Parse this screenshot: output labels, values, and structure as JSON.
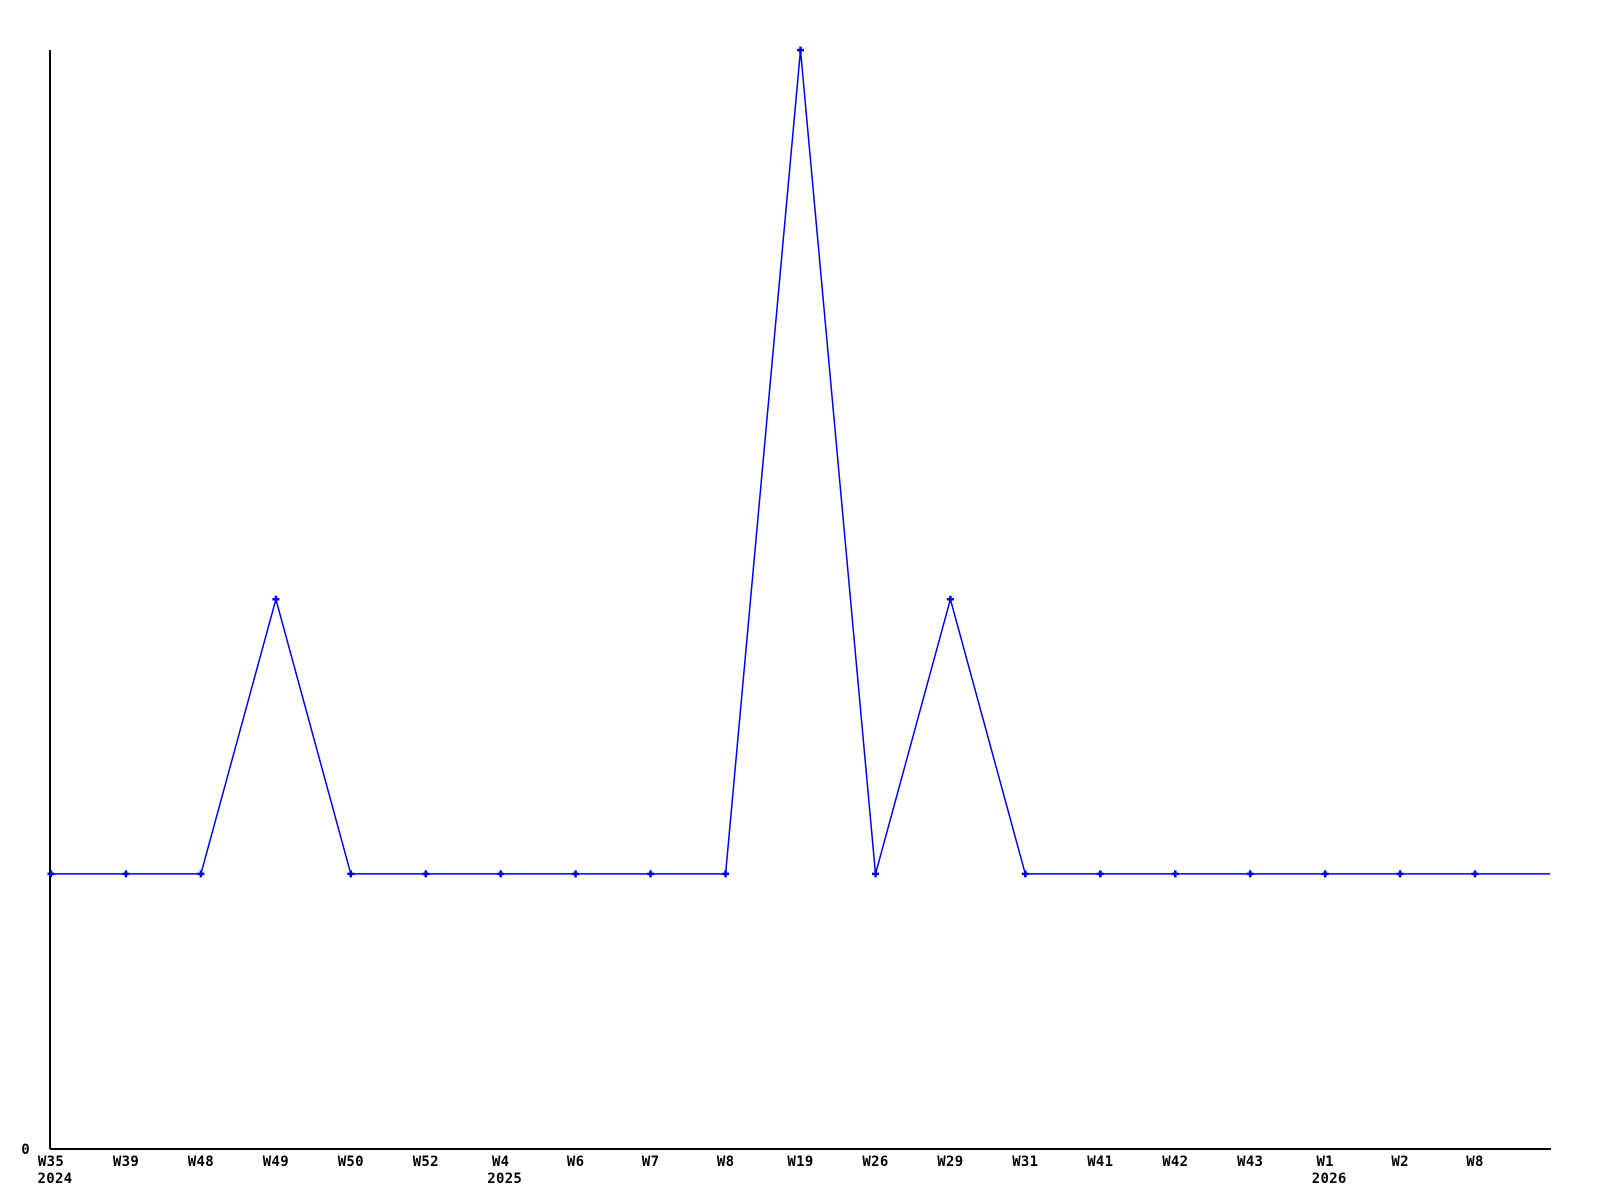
{
  "chart_data": {
    "type": "line",
    "title": "",
    "xlabel": "",
    "ylabel": "",
    "categories": [
      "W35",
      "W39",
      "W48",
      "W49",
      "W50",
      "W52",
      "W4",
      "W6",
      "W7",
      "W8",
      "W19",
      "W26",
      "W29",
      "W31",
      "W41",
      "W42",
      "W43",
      "W1",
      "W2",
      "W8"
    ],
    "values": [
      1,
      1,
      1,
      2,
      1,
      1,
      1,
      1,
      1,
      1,
      4,
      1,
      2,
      1,
      1,
      1,
      1,
      1,
      1,
      1
    ],
    "year_labels": [
      {
        "index": 0,
        "year": "2024"
      },
      {
        "index": 6,
        "year": "2025"
      },
      {
        "index": 17,
        "year": "2026"
      }
    ],
    "y_tick_label": "0",
    "ylim": [
      0,
      4
    ],
    "grid": false,
    "legend": false,
    "marker": "plus",
    "line_extends_one_extra_interval_at_value": 1,
    "line_color": "#0000e8",
    "marker_color": "#0000e8",
    "axis_color": "#000000",
    "background_color": "#ffffff"
  }
}
